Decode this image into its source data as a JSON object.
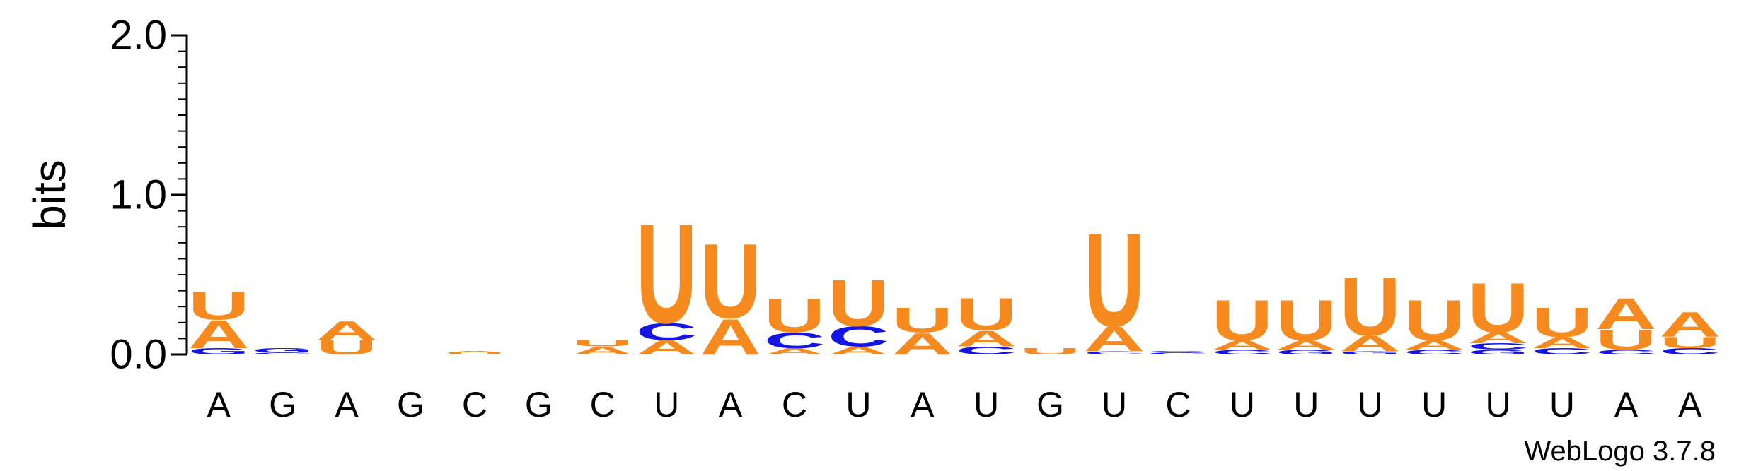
{
  "chart_data": {
    "type": "sequence-logo",
    "ylabel": "bits",
    "ylim": [
      0,
      2.0
    ],
    "yticks": [
      {
        "value": 0.0,
        "label": "0.0"
      },
      {
        "value": 1.0,
        "label": "1.0"
      },
      {
        "value": 2.0,
        "label": "2.0"
      }
    ],
    "colors": {
      "A": "#f68a1e",
      "U": "#f68a1e",
      "C": "#1515e6",
      "G": "#1515e6"
    },
    "consensus": [
      "A",
      "G",
      "A",
      "G",
      "C",
      "G",
      "C",
      "U",
      "A",
      "C",
      "U",
      "A",
      "U",
      "G",
      "U",
      "C",
      "U",
      "U",
      "U",
      "U",
      "U",
      "U",
      "A",
      "A"
    ],
    "positions": [
      {
        "stack": [
          [
            "G",
            0.04
          ],
          [
            "A",
            0.18
          ],
          [
            "U",
            0.18
          ]
        ]
      },
      {
        "stack": [
          [
            "C",
            0.01
          ],
          [
            "G",
            0.03
          ]
        ]
      },
      {
        "stack": [
          [
            "U",
            0.09
          ],
          [
            "A",
            0.12
          ]
        ]
      },
      {
        "stack": []
      },
      {
        "stack": [
          [
            "U",
            0.01
          ],
          [
            "A",
            0.01
          ]
        ]
      },
      {
        "stack": []
      },
      {
        "stack": [
          [
            "A",
            0.05
          ],
          [
            "U",
            0.04
          ]
        ]
      },
      {
        "stack": [
          [
            "A",
            0.09
          ],
          [
            "C",
            0.11
          ],
          [
            "U",
            0.64
          ]
        ]
      },
      {
        "stack": [
          [
            "A",
            0.23
          ],
          [
            "U",
            0.48
          ]
        ]
      },
      {
        "stack": [
          [
            "A",
            0.04
          ],
          [
            "C",
            0.1
          ],
          [
            "U",
            0.22
          ]
        ]
      },
      {
        "stack": [
          [
            "A",
            0.05
          ],
          [
            "C",
            0.13
          ],
          [
            "U",
            0.3
          ]
        ]
      },
      {
        "stack": [
          [
            "A",
            0.14
          ],
          [
            "U",
            0.16
          ]
        ]
      },
      {
        "stack": [
          [
            "C",
            0.05
          ],
          [
            "A",
            0.1
          ],
          [
            "U",
            0.21
          ]
        ]
      },
      {
        "stack": [
          [
            "U",
            0.04
          ]
        ]
      },
      {
        "stack": [
          [
            "C",
            0.02
          ],
          [
            "A",
            0.16
          ],
          [
            "U",
            0.6
          ]
        ]
      },
      {
        "stack": [
          [
            "C",
            0.01
          ],
          [
            "G",
            0.01
          ]
        ]
      },
      {
        "stack": [
          [
            "C",
            0.03
          ],
          [
            "A",
            0.06
          ],
          [
            "U",
            0.26
          ]
        ]
      },
      {
        "stack": [
          [
            "G",
            0.03
          ],
          [
            "A",
            0.06
          ],
          [
            "U",
            0.26
          ]
        ]
      },
      {
        "stack": [
          [
            "G",
            0.02
          ],
          [
            "A",
            0.1
          ],
          [
            "U",
            0.38
          ]
        ]
      },
      {
        "stack": [
          [
            "C",
            0.03
          ],
          [
            "A",
            0.06
          ],
          [
            "U",
            0.26
          ]
        ]
      },
      {
        "stack": [
          [
            "G",
            0.03
          ],
          [
            "C",
            0.04
          ],
          [
            "A",
            0.07
          ],
          [
            "U",
            0.32
          ]
        ]
      },
      {
        "stack": [
          [
            "C",
            0.04
          ],
          [
            "A",
            0.07
          ],
          [
            "U",
            0.19
          ]
        ]
      },
      {
        "stack": [
          [
            "C",
            0.03
          ],
          [
            "U",
            0.13
          ],
          [
            "A",
            0.2
          ]
        ]
      },
      {
        "stack": [
          [
            "C",
            0.04
          ],
          [
            "U",
            0.07
          ],
          [
            "A",
            0.16
          ]
        ]
      }
    ]
  },
  "footer": {
    "credit": "WebLogo 3.7.8"
  }
}
